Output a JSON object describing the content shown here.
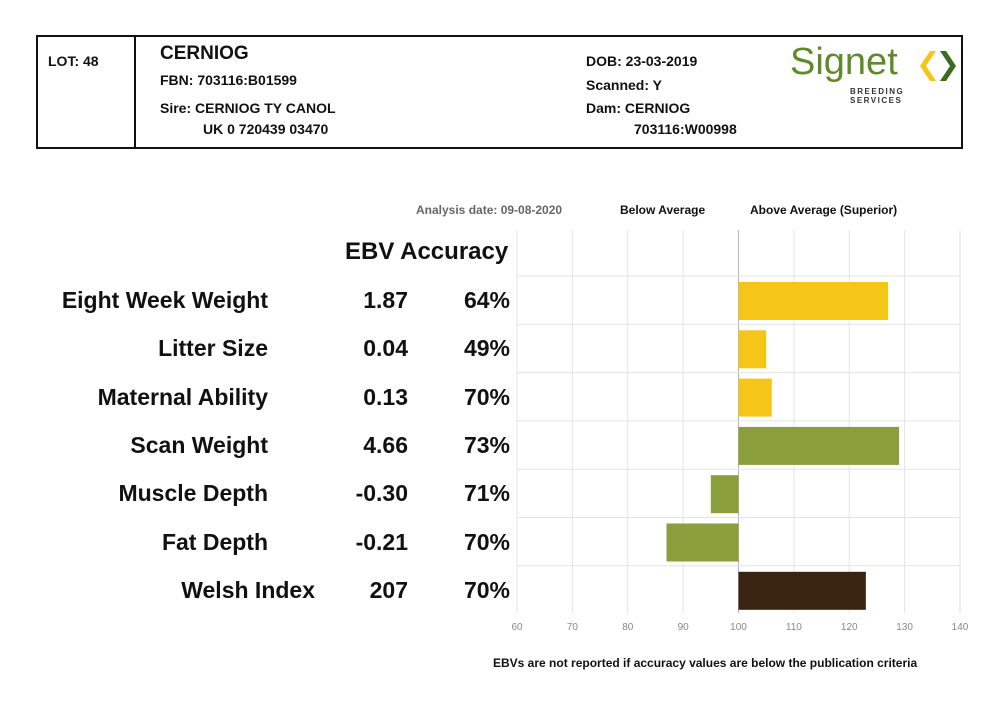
{
  "header": {
    "lot": "LOT: 48",
    "name": "CERNIOG",
    "fbn": "FBN: 703116:B01599",
    "sire": "Sire: CERNIOG TY CANOL",
    "sire_id": "UK 0 720439 03470",
    "dob": "DOB: 23-03-2019",
    "scanned": "Scanned: Y",
    "dam": "Dam: CERNIOG",
    "dam_id": "703116:W00998",
    "logo_word": "Signet",
    "logo_sub": "BREEDING SERVICES",
    "logo_color": "#5f8a2a",
    "logo_mark_colors": [
      "#f5c518",
      "#3a6b1f"
    ]
  },
  "labels": {
    "analysis_date": "Analysis date: 09-08-2020",
    "below_average": "Below Average",
    "above_average": "Above Average (Superior)",
    "ebv_accuracy": "EBV Accuracy",
    "footnote": "EBVs are not reported if accuracy values are below the publication criteria"
  },
  "chart_data": {
    "type": "bar",
    "orientation": "horizontal",
    "baseline": 100,
    "xlim": [
      60,
      140
    ],
    "xticks": [
      60,
      70,
      80,
      90,
      100,
      110,
      120,
      130,
      140
    ],
    "grid": true,
    "categories": [
      "Eight Week Weight",
      "Litter Size",
      "Maternal Ability",
      "Scan Weight",
      "Muscle Depth",
      "Fat Depth",
      "Welsh Index"
    ],
    "ebv": [
      "1.87",
      "0.04",
      "0.13",
      "4.66",
      "-0.30",
      "-0.21",
      "207"
    ],
    "accuracy": [
      "64%",
      "49%",
      "70%",
      "73%",
      "71%",
      "70%",
      "70%"
    ],
    "values": [
      127,
      105,
      106,
      129,
      95,
      87,
      123
    ],
    "colors": [
      "#f5c518",
      "#f5c518",
      "#f5c518",
      "#8a9f3c",
      "#8a9f3c",
      "#8a9f3c",
      "#3a2412"
    ]
  }
}
